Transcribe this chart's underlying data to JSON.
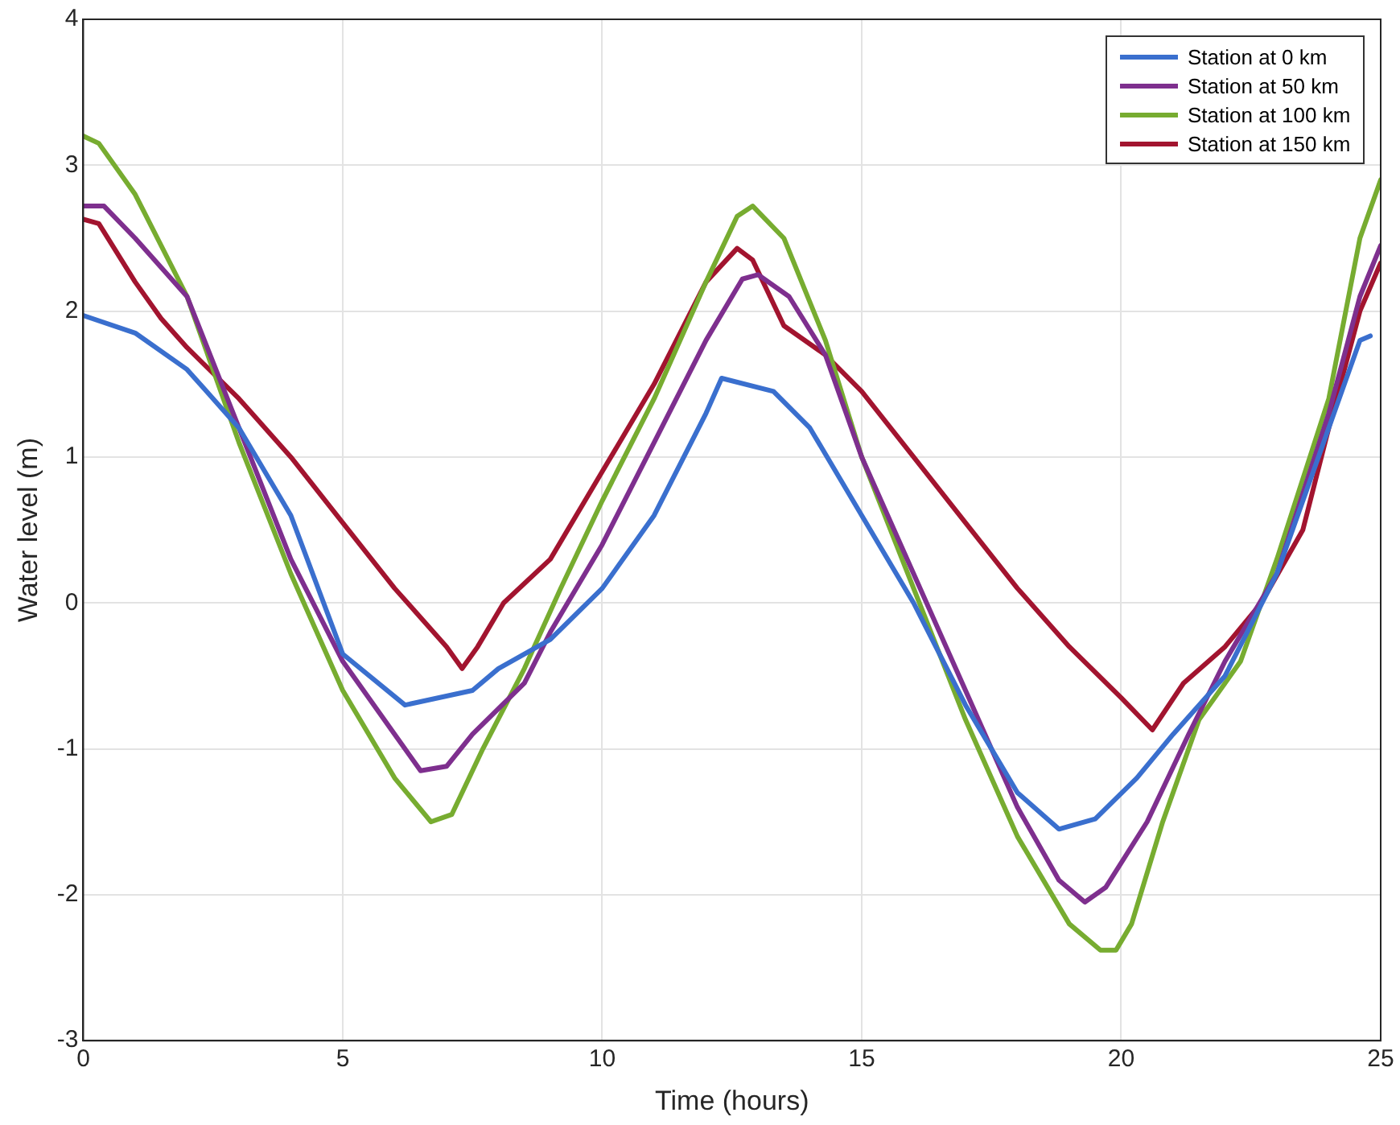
{
  "chart_data": {
    "type": "line",
    "xlabel": "Time (hours)",
    "ylabel": "Water level (m)",
    "xlim": [
      0,
      25
    ],
    "xticks": [
      0,
      5,
      10,
      15,
      20,
      25
    ],
    "ylim": [
      -3,
      4
    ],
    "yticks": [
      -3,
      -2,
      -1,
      0,
      1,
      2,
      3,
      4
    ],
    "grid": true,
    "legend": "top right",
    "marker": "none",
    "line_style": "solid",
    "series": [
      {
        "name": "Station at 0 km",
        "color": "#3a6fce",
        "x": [
          0,
          1,
          2,
          3,
          4,
          5,
          6.2,
          7.5,
          8,
          9,
          10,
          11,
          12,
          12.3,
          13.3,
          14,
          15,
          16,
          17,
          18,
          18.8,
          19.5,
          20.3,
          21,
          22,
          23,
          24,
          24.6,
          24.8
        ],
        "values": [
          1.97,
          1.85,
          1.6,
          1.2,
          0.6,
          -0.35,
          -0.7,
          -0.6,
          -0.45,
          -0.25,
          0.1,
          0.6,
          1.3,
          1.54,
          1.45,
          1.2,
          0.6,
          0,
          -0.7,
          -1.3,
          -1.55,
          -1.48,
          -1.2,
          -0.9,
          -0.5,
          0.2,
          1.2,
          1.8,
          1.83
        ]
      },
      {
        "name": "Station at 50 km",
        "color": "#7e2f8e",
        "x": [
          0,
          0.4,
          1,
          2,
          3,
          4,
          5,
          6,
          6.5,
          7,
          7.5,
          8.5,
          9,
          10,
          11,
          12,
          12.7,
          13,
          13.6,
          14.3,
          15,
          16,
          17,
          18,
          18.8,
          19.3,
          19.7,
          20.5,
          21.3,
          22,
          23,
          24,
          24.6,
          25
        ],
        "values": [
          2.72,
          2.72,
          2.5,
          2.1,
          1.2,
          0.3,
          -0.4,
          -0.9,
          -1.15,
          -1.12,
          -0.9,
          -0.55,
          -0.2,
          0.4,
          1.1,
          1.8,
          2.22,
          2.25,
          2.1,
          1.7,
          1.0,
          0.2,
          -0.6,
          -1.4,
          -1.9,
          -2.05,
          -1.95,
          -1.5,
          -0.9,
          -0.4,
          0.2,
          1.3,
          2.1,
          2.45
        ]
      },
      {
        "name": "Station at 100 km",
        "color": "#77ac30",
        "x": [
          0,
          0.3,
          1,
          2,
          3,
          4,
          5,
          6,
          6.7,
          7.1,
          7.7,
          8.5,
          9.2,
          10,
          11,
          12,
          12.6,
          12.9,
          13.5,
          14.3,
          15,
          16,
          17,
          18,
          19,
          19.6,
          19.9,
          20.2,
          20.8,
          21.5,
          22.3,
          23,
          24,
          24.6,
          25
        ],
        "values": [
          3.2,
          3.15,
          2.8,
          2.1,
          1.1,
          0.2,
          -0.6,
          -1.2,
          -1.5,
          -1.45,
          -1.0,
          -0.45,
          0.1,
          0.7,
          1.4,
          2.2,
          2.65,
          2.72,
          2.5,
          1.8,
          1.0,
          0.1,
          -0.8,
          -1.6,
          -2.2,
          -2.38,
          -2.38,
          -2.2,
          -1.5,
          -0.8,
          -0.4,
          0.3,
          1.4,
          2.5,
          2.9
        ]
      },
      {
        "name": "Station at 150 km",
        "color": "#a2142f",
        "x": [
          0,
          0.3,
          1,
          1.5,
          2,
          3,
          4,
          5,
          6,
          7,
          7.3,
          7.6,
          8.1,
          9,
          10,
          11,
          12,
          12.6,
          12.9,
          13.5,
          14.3,
          15,
          16,
          17,
          18,
          19,
          20,
          20.6,
          21.2,
          22,
          22.7,
          23.5,
          24,
          24.6,
          25
        ],
        "values": [
          2.63,
          2.6,
          2.2,
          1.95,
          1.75,
          1.4,
          1.0,
          0.55,
          0.1,
          -0.3,
          -0.45,
          -0.3,
          0,
          0.3,
          0.9,
          1.5,
          2.2,
          2.43,
          2.35,
          1.9,
          1.7,
          1.45,
          1.0,
          0.55,
          0.1,
          -0.3,
          -0.65,
          -0.87,
          -0.55,
          -0.3,
          0,
          0.5,
          1.2,
          2.0,
          2.33
        ]
      }
    ]
  }
}
